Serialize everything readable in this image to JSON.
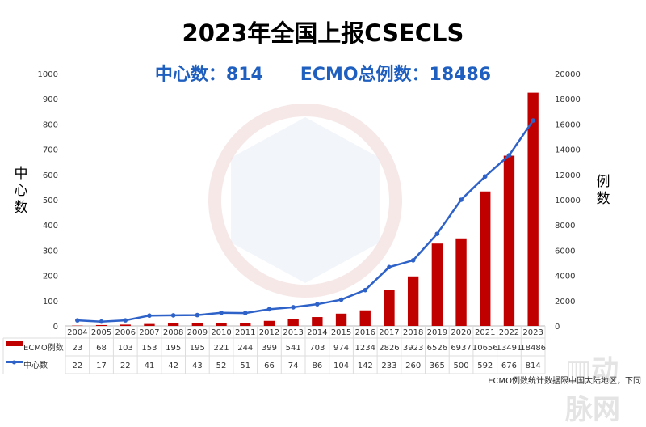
{
  "chart_data": {
    "type": "bar+line",
    "title": "2023年全国上报CSECLS",
    "subtitle": "中心数：814      ECMO总例数：18486",
    "categories": [
      "2004",
      "2005",
      "2006",
      "2007",
      "2008",
      "2009",
      "2010",
      "2011",
      "2012",
      "2013",
      "2014",
      "2015",
      "2016",
      "2017",
      "2018",
      "2019",
      "2020",
      "2021",
      "2022",
      "2023"
    ],
    "series": [
      {
        "name": "ECMO例数",
        "type": "bar",
        "axis": "right",
        "color": "#c00000",
        "values": [
          23,
          68,
          103,
          153,
          195,
          195,
          221,
          244,
          399,
          541,
          703,
          974,
          1234,
          2826,
          3923,
          6526,
          6937,
          10656,
          13491,
          18486
        ]
      },
      {
        "name": "中心数",
        "type": "line",
        "axis": "left",
        "color": "#2e62c9",
        "values": [
          22,
          17,
          22,
          41,
          42,
          43,
          52,
          51,
          66,
          74,
          86,
          104,
          142,
          233,
          260,
          365,
          500,
          592,
          676,
          814
        ]
      }
    ],
    "ylabel_left": "中心数",
    "ylabel_right": "例数",
    "ylim_left": [
      0,
      1000
    ],
    "yticks_left": [
      0,
      100,
      200,
      300,
      400,
      500,
      600,
      700,
      800,
      900,
      1000
    ],
    "ylim_right": [
      0,
      20000
    ],
    "yticks_right": [
      0,
      2000,
      4000,
      6000,
      8000,
      10000,
      12000,
      14000,
      16000,
      18000,
      20000
    ],
    "grid": false,
    "legend": "data-table"
  },
  "footnote": "ECMO例数统计数据限中国大陆地区，下同",
  "watermark": "动脉网"
}
